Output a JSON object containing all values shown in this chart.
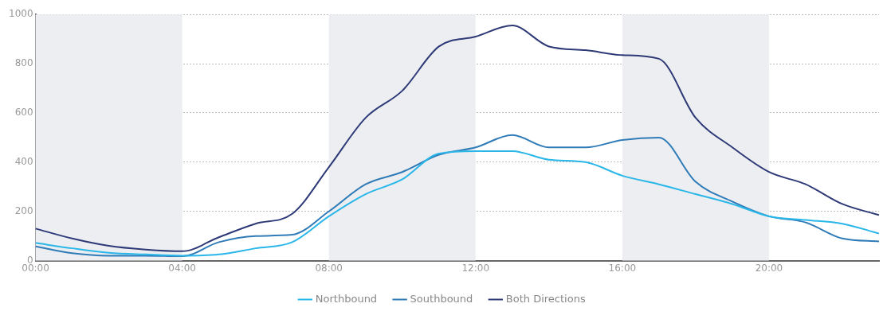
{
  "chart_data": {
    "type": "line",
    "x": [
      0,
      1,
      2,
      3,
      4,
      5,
      6,
      7,
      8,
      9,
      10,
      11,
      12,
      13,
      14,
      15,
      16,
      17,
      18,
      19,
      20,
      21,
      22,
      23
    ],
    "series": [
      {
        "name": "Northbound",
        "color": "#29b6e8",
        "values": [
          72,
          50,
          32,
          25,
          20,
          25,
          50,
          75,
          180,
          270,
          330,
          435,
          445,
          445,
          410,
          400,
          345,
          310,
          270,
          230,
          180,
          165,
          150,
          110
        ]
      },
      {
        "name": "Southbound",
        "color": "#2f7bb8",
        "values": [
          58,
          30,
          20,
          20,
          18,
          75,
          100,
          105,
          200,
          310,
          360,
          430,
          460,
          510,
          460,
          460,
          490,
          500,
          320,
          240,
          180,
          155,
          90,
          78
        ]
      },
      {
        "name": "Both Directions",
        "color": "#2e3a78",
        "values": [
          130,
          90,
          60,
          45,
          38,
          95,
          150,
          190,
          380,
          580,
          690,
          870,
          910,
          955,
          870,
          855,
          835,
          820,
          580,
          460,
          360,
          310,
          230,
          185
        ]
      }
    ],
    "xlim": [
      0,
      23
    ],
    "xticks": [
      {
        "value": 0,
        "label": "00:00"
      },
      {
        "value": 4,
        "label": "04:00"
      },
      {
        "value": 8,
        "label": "08:00"
      },
      {
        "value": 12,
        "label": "12:00"
      },
      {
        "value": 16,
        "label": "16:00"
      },
      {
        "value": 20,
        "label": "20:00"
      }
    ],
    "ylim": [
      0,
      1000
    ],
    "yticks": [
      0,
      200,
      400,
      600,
      800,
      1000
    ],
    "bands": [
      {
        "axis": "x",
        "from": 0,
        "to": 4,
        "color": "#eceef1"
      },
      {
        "axis": "x",
        "from": 8,
        "to": 12,
        "color": "#eceef1"
      },
      {
        "axis": "x",
        "from": 16,
        "to": 20,
        "color": "#eceef1"
      }
    ],
    "grid": "y",
    "legend": "bottom",
    "marker": "none",
    "line_style": "solid"
  }
}
